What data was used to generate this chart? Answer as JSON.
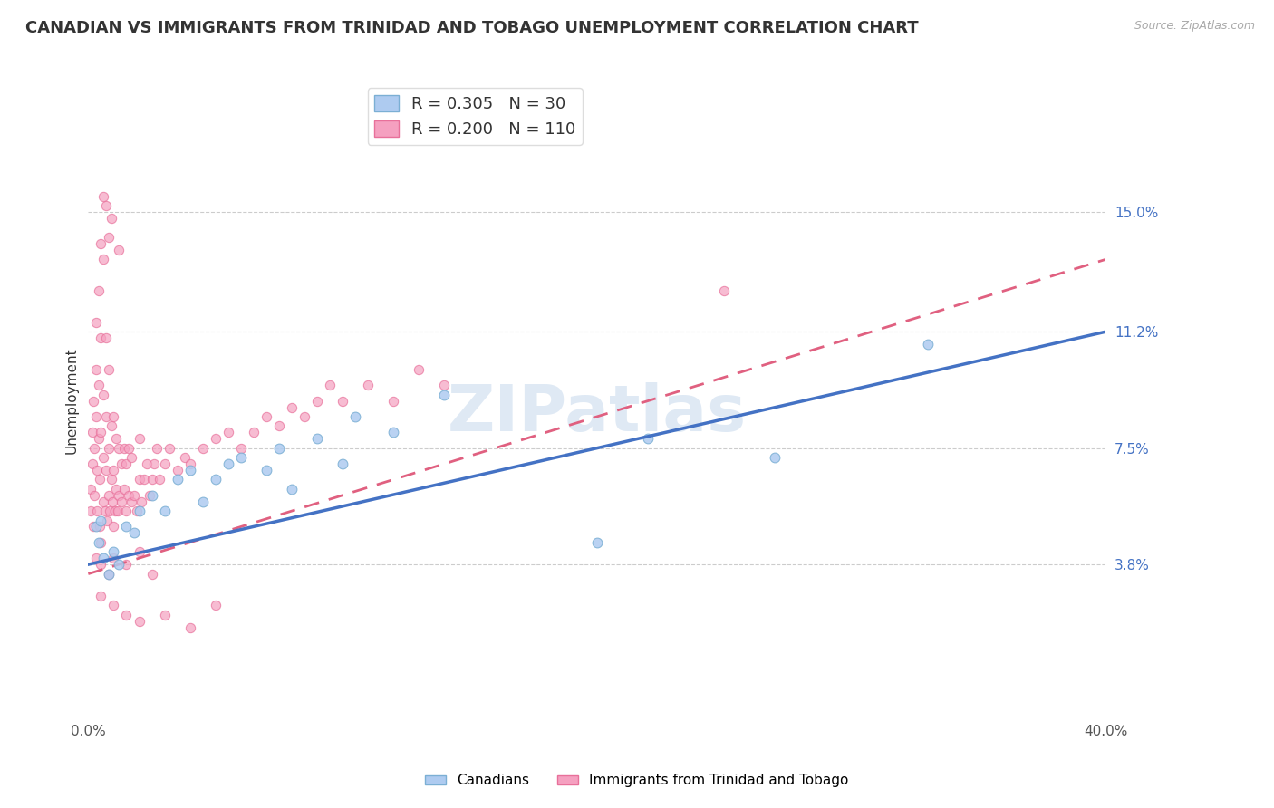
{
  "title": "CANADIAN VS IMMIGRANTS FROM TRINIDAD AND TOBAGO UNEMPLOYMENT CORRELATION CHART",
  "source": "Source: ZipAtlas.com",
  "watermark": "ZIPatlas",
  "ylabel": "Unemployment",
  "xlim": [
    0.0,
    40.0
  ],
  "ylim": [
    -1.0,
    19.0
  ],
  "yticks": [
    3.8,
    7.5,
    11.2,
    15.0
  ],
  "ytick_labels": [
    "3.8%",
    "7.5%",
    "11.2%",
    "15.0%"
  ],
  "xticks": [
    0.0,
    40.0
  ],
  "xtick_labels": [
    "0.0%",
    "40.0%"
  ],
  "blue_line": {
    "x0": 0.0,
    "y0": 3.8,
    "x1": 40.0,
    "y1": 11.2
  },
  "pink_line": {
    "x0": 0.0,
    "y0": 3.5,
    "x1": 40.0,
    "y1": 13.5
  },
  "canadians_points": [
    [
      0.3,
      5.0
    ],
    [
      0.4,
      4.5
    ],
    [
      0.5,
      5.2
    ],
    [
      0.6,
      4.0
    ],
    [
      0.8,
      3.5
    ],
    [
      1.0,
      4.2
    ],
    [
      1.2,
      3.8
    ],
    [
      1.5,
      5.0
    ],
    [
      1.8,
      4.8
    ],
    [
      2.0,
      5.5
    ],
    [
      2.5,
      6.0
    ],
    [
      3.0,
      5.5
    ],
    [
      3.5,
      6.5
    ],
    [
      4.0,
      6.8
    ],
    [
      4.5,
      5.8
    ],
    [
      5.0,
      6.5
    ],
    [
      5.5,
      7.0
    ],
    [
      6.0,
      7.2
    ],
    [
      7.0,
      6.8
    ],
    [
      7.5,
      7.5
    ],
    [
      8.0,
      6.2
    ],
    [
      9.0,
      7.8
    ],
    [
      10.0,
      7.0
    ],
    [
      10.5,
      8.5
    ],
    [
      12.0,
      8.0
    ],
    [
      14.0,
      9.2
    ],
    [
      20.0,
      4.5
    ],
    [
      22.0,
      7.8
    ],
    [
      27.0,
      7.2
    ],
    [
      33.0,
      10.8
    ]
  ],
  "pink_points": [
    [
      0.1,
      5.5
    ],
    [
      0.1,
      6.2
    ],
    [
      0.15,
      7.0
    ],
    [
      0.15,
      8.0
    ],
    [
      0.2,
      9.0
    ],
    [
      0.2,
      5.0
    ],
    [
      0.25,
      6.0
    ],
    [
      0.25,
      7.5
    ],
    [
      0.3,
      8.5
    ],
    [
      0.3,
      10.0
    ],
    [
      0.3,
      11.5
    ],
    [
      0.35,
      5.5
    ],
    [
      0.35,
      6.8
    ],
    [
      0.4,
      7.8
    ],
    [
      0.4,
      9.5
    ],
    [
      0.4,
      12.5
    ],
    [
      0.45,
      5.0
    ],
    [
      0.45,
      6.5
    ],
    [
      0.5,
      8.0
    ],
    [
      0.5,
      11.0
    ],
    [
      0.5,
      14.0
    ],
    [
      0.5,
      4.5
    ],
    [
      0.6,
      5.8
    ],
    [
      0.6,
      7.2
    ],
    [
      0.6,
      9.2
    ],
    [
      0.6,
      13.5
    ],
    [
      0.65,
      5.5
    ],
    [
      0.7,
      6.8
    ],
    [
      0.7,
      8.5
    ],
    [
      0.7,
      11.0
    ],
    [
      0.75,
      5.2
    ],
    [
      0.8,
      6.0
    ],
    [
      0.8,
      7.5
    ],
    [
      0.8,
      10.0
    ],
    [
      0.85,
      5.5
    ],
    [
      0.9,
      6.5
    ],
    [
      0.9,
      8.2
    ],
    [
      0.95,
      5.8
    ],
    [
      1.0,
      5.0
    ],
    [
      1.0,
      6.8
    ],
    [
      1.0,
      8.5
    ],
    [
      1.05,
      5.5
    ],
    [
      1.1,
      6.2
    ],
    [
      1.1,
      7.8
    ],
    [
      1.15,
      5.5
    ],
    [
      1.2,
      6.0
    ],
    [
      1.2,
      7.5
    ],
    [
      1.3,
      5.8
    ],
    [
      1.3,
      7.0
    ],
    [
      1.4,
      6.2
    ],
    [
      1.4,
      7.5
    ],
    [
      1.5,
      5.5
    ],
    [
      1.5,
      7.0
    ],
    [
      1.6,
      6.0
    ],
    [
      1.6,
      7.5
    ],
    [
      1.7,
      5.8
    ],
    [
      1.7,
      7.2
    ],
    [
      1.8,
      6.0
    ],
    [
      1.9,
      5.5
    ],
    [
      2.0,
      6.5
    ],
    [
      2.0,
      7.8
    ],
    [
      2.1,
      5.8
    ],
    [
      2.2,
      6.5
    ],
    [
      2.3,
      7.0
    ],
    [
      2.4,
      6.0
    ],
    [
      2.5,
      6.5
    ],
    [
      2.6,
      7.0
    ],
    [
      2.7,
      7.5
    ],
    [
      2.8,
      6.5
    ],
    [
      3.0,
      7.0
    ],
    [
      3.2,
      7.5
    ],
    [
      3.5,
      6.8
    ],
    [
      3.8,
      7.2
    ],
    [
      4.0,
      7.0
    ],
    [
      4.5,
      7.5
    ],
    [
      5.0,
      7.8
    ],
    [
      5.5,
      8.0
    ],
    [
      6.0,
      7.5
    ],
    [
      6.5,
      8.0
    ],
    [
      7.0,
      8.5
    ],
    [
      7.5,
      8.2
    ],
    [
      8.0,
      8.8
    ],
    [
      8.5,
      8.5
    ],
    [
      9.0,
      9.0
    ],
    [
      9.5,
      9.5
    ],
    [
      10.0,
      9.0
    ],
    [
      11.0,
      9.5
    ],
    [
      12.0,
      9.0
    ],
    [
      13.0,
      10.0
    ],
    [
      14.0,
      9.5
    ],
    [
      0.3,
      4.0
    ],
    [
      0.5,
      3.8
    ],
    [
      0.8,
      3.5
    ],
    [
      1.0,
      4.0
    ],
    [
      1.5,
      3.8
    ],
    [
      2.0,
      4.2
    ],
    [
      2.5,
      3.5
    ],
    [
      0.5,
      2.8
    ],
    [
      1.0,
      2.5
    ],
    [
      0.8,
      14.2
    ],
    [
      1.2,
      13.8
    ],
    [
      0.7,
      15.2
    ],
    [
      0.9,
      14.8
    ],
    [
      25.0,
      12.5
    ],
    [
      0.6,
      15.5
    ],
    [
      1.5,
      2.2
    ],
    [
      2.0,
      2.0
    ],
    [
      3.0,
      2.2
    ],
    [
      4.0,
      1.8
    ],
    [
      5.0,
      2.5
    ]
  ],
  "background_color": "#ffffff",
  "plot_bg_color": "#ffffff",
  "grid_color": "#cccccc",
  "title_fontsize": 13,
  "axis_label_fontsize": 11,
  "tick_fontsize": 11,
  "legend_fontsize": 13
}
